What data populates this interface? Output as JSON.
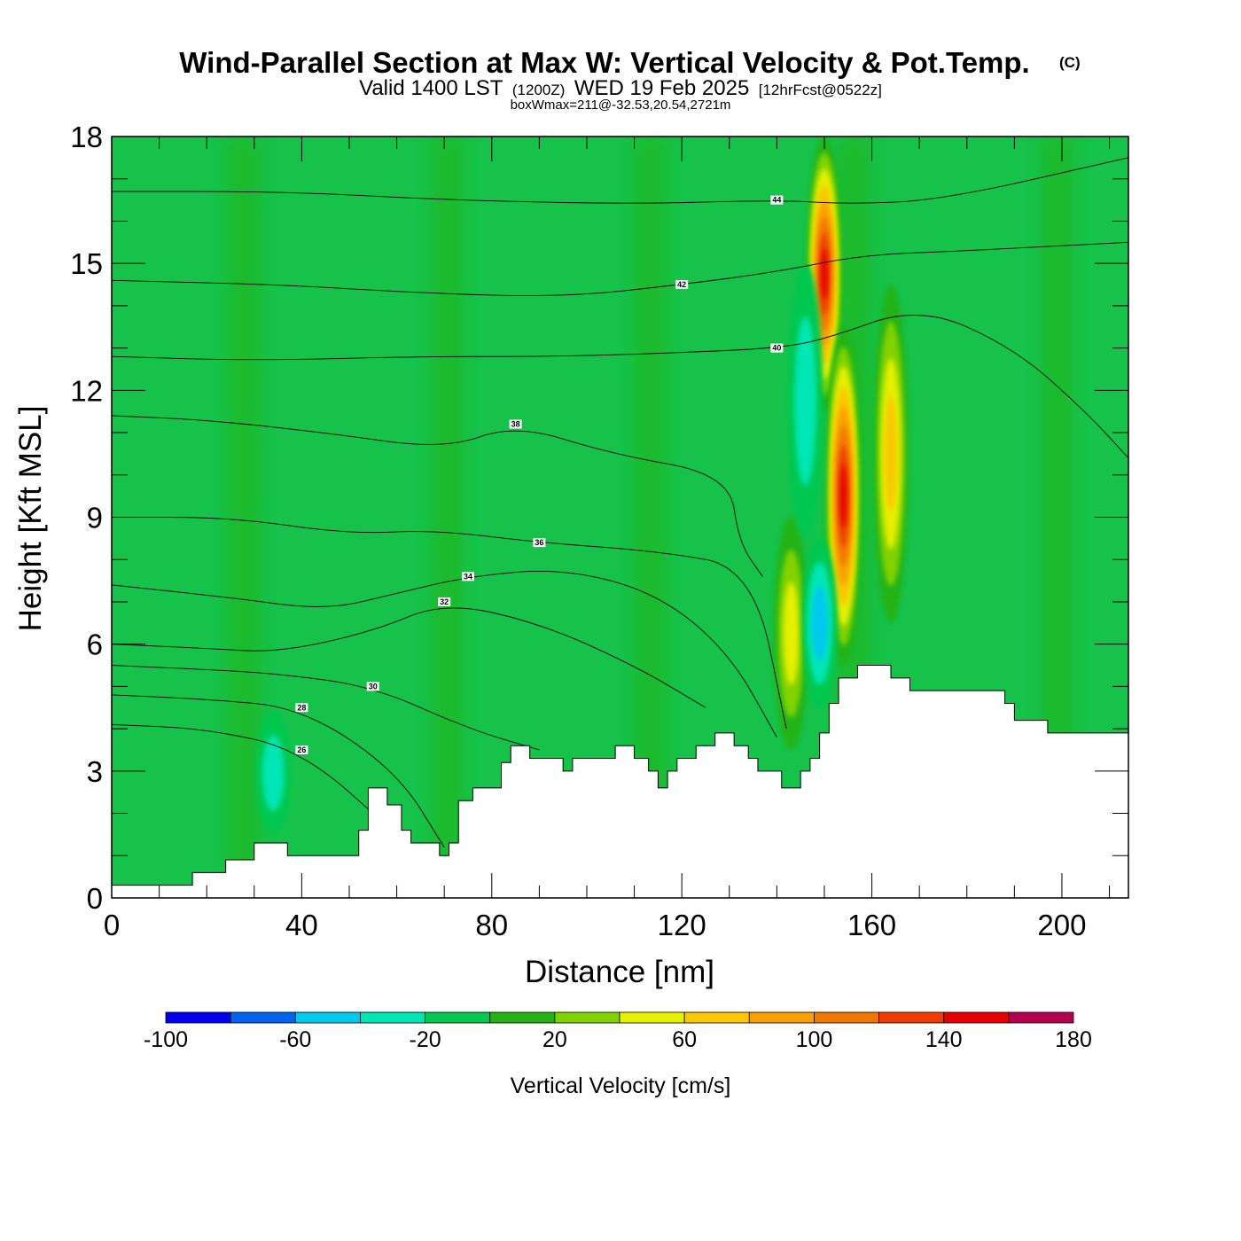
{
  "header": {
    "title": "Wind-Parallel Section at Max W: Vertical Velocity & Pot.Temp.",
    "copyright_mark": "(C)",
    "subtitle_valid": "Valid 1400 LST",
    "subtitle_utc": "(1200Z)",
    "subtitle_date": "WED 19 Feb 2025",
    "subtitle_fcst": "[12hrFcst@0522z]",
    "box_line": "boxWmax=211@-32.53,20.54,2721m"
  },
  "chart_data": {
    "type": "heatmap",
    "title": "Wind-Parallel Section at Max W: Vertical Velocity & Pot.Temp.",
    "xlabel": "Distance [nm]",
    "ylabel": "Height [Kft MSL]",
    "xlim": [
      0,
      214
    ],
    "ylim": [
      0,
      18
    ],
    "x_ticks": [
      "0",
      "40",
      "80",
      "120",
      "160",
      "200"
    ],
    "y_ticks": [
      "0",
      "3",
      "6",
      "9",
      "12",
      "15",
      "18"
    ],
    "terrain_top_kft": [
      [
        0,
        0.3
      ],
      [
        17,
        0.3
      ],
      [
        17,
        0.6
      ],
      [
        24,
        0.6
      ],
      [
        24,
        0.9
      ],
      [
        30,
        0.9
      ],
      [
        30,
        1.3
      ],
      [
        37,
        1.3
      ],
      [
        37,
        1.0
      ],
      [
        52,
        1.0
      ],
      [
        52,
        1.6
      ],
      [
        54,
        1.6
      ],
      [
        54,
        2.6
      ],
      [
        58,
        2.6
      ],
      [
        58,
        2.2
      ],
      [
        61,
        2.2
      ],
      [
        61,
        1.6
      ],
      [
        63,
        1.6
      ],
      [
        63,
        1.3
      ],
      [
        69,
        1.3
      ],
      [
        69,
        1.0
      ],
      [
        71,
        1.0
      ],
      [
        71,
        1.3
      ],
      [
        73,
        1.3
      ],
      [
        73,
        2.3
      ],
      [
        76,
        2.3
      ],
      [
        76,
        2.6
      ],
      [
        82,
        2.6
      ],
      [
        82,
        3.2
      ],
      [
        84,
        3.2
      ],
      [
        84,
        3.6
      ],
      [
        88,
        3.6
      ],
      [
        88,
        3.3
      ],
      [
        95,
        3.3
      ],
      [
        95,
        3.0
      ],
      [
        97,
        3.0
      ],
      [
        97,
        3.3
      ],
      [
        106,
        3.3
      ],
      [
        106,
        3.6
      ],
      [
        110,
        3.6
      ],
      [
        110,
        3.3
      ],
      [
        113,
        3.3
      ],
      [
        113,
        3.0
      ],
      [
        115,
        3.0
      ],
      [
        115,
        2.6
      ],
      [
        117,
        2.6
      ],
      [
        117,
        3.0
      ],
      [
        119,
        3.0
      ],
      [
        119,
        3.3
      ],
      [
        123,
        3.3
      ],
      [
        123,
        3.6
      ],
      [
        127,
        3.6
      ],
      [
        127,
        3.9
      ],
      [
        131,
        3.9
      ],
      [
        131,
        3.6
      ],
      [
        134,
        3.6
      ],
      [
        134,
        3.3
      ],
      [
        136,
        3.3
      ],
      [
        136,
        3.0
      ],
      [
        141,
        3.0
      ],
      [
        141,
        2.6
      ],
      [
        145,
        2.6
      ],
      [
        145,
        3.0
      ],
      [
        147,
        3.0
      ],
      [
        147,
        3.3
      ],
      [
        149,
        3.3
      ],
      [
        149,
        3.9
      ],
      [
        151,
        3.9
      ],
      [
        151,
        4.6
      ],
      [
        153,
        4.6
      ],
      [
        153,
        5.2
      ],
      [
        157,
        5.2
      ],
      [
        157,
        5.5
      ],
      [
        164,
        5.5
      ],
      [
        164,
        5.2
      ],
      [
        168,
        5.2
      ],
      [
        168,
        4.9
      ],
      [
        188,
        4.9
      ],
      [
        188,
        4.6
      ],
      [
        190,
        4.6
      ],
      [
        190,
        4.2
      ],
      [
        197,
        4.2
      ],
      [
        197,
        3.9
      ],
      [
        214,
        3.9
      ]
    ],
    "series": [
      {
        "name": "Vertical Velocity [cm/s]",
        "value_range": [
          -100,
          180
        ],
        "features": [
          {
            "x": 150,
            "y_top": 18,
            "y_bottom": 11.5,
            "peak": 150
          },
          {
            "x": 154,
            "y_top": 13.5,
            "y_bottom": 5.5,
            "peak": 160
          },
          {
            "x": 164,
            "y_top": 14.5,
            "y_bottom": 6.5,
            "peak": 70
          },
          {
            "x": 143,
            "y_top": 9,
            "y_bottom": 3.5,
            "peak": 60
          },
          {
            "x": 149,
            "y_top": 8.5,
            "y_bottom": 4.5,
            "peak": -60
          },
          {
            "x": 146,
            "y_top": 15,
            "y_bottom": 8.5,
            "peak": -30
          },
          {
            "x": 34,
            "y_top": 4.4,
            "y_bottom": 1.5,
            "peak": -30
          }
        ]
      },
      {
        "name": "Potential Temperature",
        "contour_labels": [
          "26",
          "28",
          "30",
          "32",
          "34",
          "36",
          "38",
          "40",
          "42",
          "44"
        ]
      }
    ],
    "colorbar": {
      "label": "Vertical Velocity [cm/s]",
      "levels": [
        -100,
        -80,
        -60,
        -40,
        -20,
        0,
        20,
        40,
        60,
        80,
        100,
        120,
        140,
        160,
        180
      ],
      "colors": [
        "#0000ee",
        "#0064ee",
        "#00c8f0",
        "#00e6b4",
        "#00c850",
        "#22b414",
        "#82d200",
        "#e6f000",
        "#fac800",
        "#faa000",
        "#f07800",
        "#f03c00",
        "#e60000",
        "#b40050"
      ],
      "tick_labels": [
        "-100",
        "-60",
        "-20",
        "20",
        "60",
        "100",
        "140",
        "180"
      ]
    },
    "contours": [
      {
        "label": "26",
        "points": [
          [
            0,
            4.1
          ],
          [
            20,
            4.0
          ],
          [
            40,
            3.5
          ],
          [
            60,
            1.5
          ]
        ]
      },
      {
        "label": "28",
        "points": [
          [
            0,
            4.8
          ],
          [
            20,
            4.7
          ],
          [
            40,
            4.5
          ],
          [
            60,
            3.0
          ],
          [
            70,
            1.2
          ]
        ]
      },
      {
        "label": "30",
        "points": [
          [
            0,
            5.5
          ],
          [
            20,
            5.4
          ],
          [
            35,
            5.3
          ],
          [
            55,
            5.0
          ],
          [
            75,
            4.0
          ],
          [
            90,
            3.5
          ]
        ]
      },
      {
        "label": "32",
        "points": [
          [
            0,
            6.0
          ],
          [
            20,
            5.9
          ],
          [
            35,
            5.8
          ],
          [
            55,
            6.3
          ],
          [
            70,
            7.0
          ],
          [
            90,
            6.5
          ],
          [
            110,
            5.5
          ],
          [
            125,
            4.5
          ]
        ]
      },
      {
        "label": "34",
        "points": [
          [
            0,
            7.4
          ],
          [
            25,
            7.1
          ],
          [
            45,
            6.8
          ],
          [
            60,
            7.2
          ],
          [
            75,
            7.6
          ],
          [
            95,
            7.8
          ],
          [
            115,
            7.2
          ],
          [
            130,
            5.8
          ],
          [
            140,
            3.8
          ]
        ]
      },
      {
        "label": "36",
        "points": [
          [
            0,
            9.0
          ],
          [
            25,
            9.0
          ],
          [
            50,
            8.6
          ],
          [
            68,
            8.7
          ],
          [
            90,
            8.4
          ],
          [
            115,
            8.2
          ],
          [
            135,
            7.8
          ],
          [
            142,
            4.0
          ]
        ]
      },
      {
        "label": "38",
        "points": [
          [
            0,
            11.4
          ],
          [
            20,
            11.3
          ],
          [
            45,
            11.0
          ],
          [
            70,
            10.6
          ],
          [
            85,
            11.2
          ],
          [
            105,
            10.5
          ],
          [
            130,
            10.0
          ],
          [
            132,
            8.4
          ],
          [
            137,
            7.6
          ]
        ]
      },
      {
        "label": "40",
        "points": [
          [
            0,
            12.8
          ],
          [
            30,
            12.7
          ],
          [
            65,
            12.8
          ],
          [
            95,
            12.8
          ],
          [
            122,
            12.9
          ],
          [
            140,
            13.0
          ],
          [
            150,
            13.2
          ],
          [
            170,
            14.0
          ],
          [
            190,
            13.0
          ],
          [
            205,
            11.5
          ],
          [
            214,
            10.4
          ]
        ]
      },
      {
        "label": "42",
        "points": [
          [
            0,
            14.6
          ],
          [
            35,
            14.5
          ],
          [
            65,
            14.3
          ],
          [
            95,
            14.2
          ],
          [
            120,
            14.5
          ],
          [
            140,
            14.8
          ],
          [
            158,
            15.2
          ],
          [
            180,
            15.3
          ],
          [
            214,
            15.5
          ]
        ]
      },
      {
        "label": "44",
        "points": [
          [
            0,
            16.7
          ],
          [
            37,
            16.7
          ],
          [
            70,
            16.5
          ],
          [
            110,
            16.4
          ],
          [
            140,
            16.5
          ],
          [
            155,
            16.4
          ],
          [
            175,
            16.5
          ],
          [
            214,
            17.5
          ]
        ]
      }
    ]
  }
}
